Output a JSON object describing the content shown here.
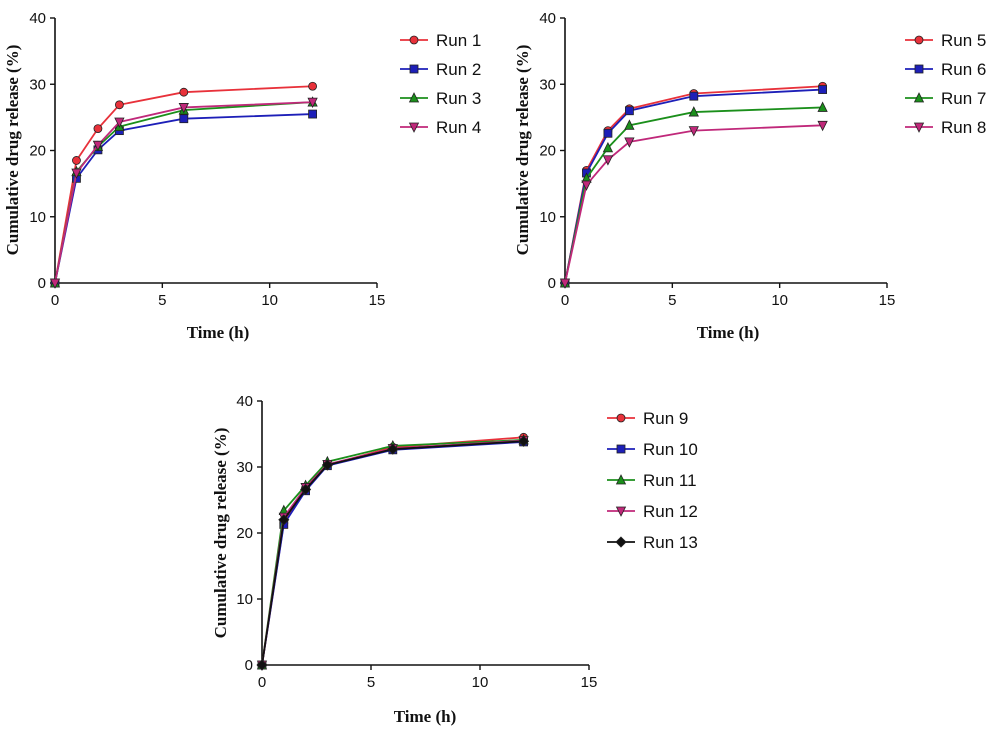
{
  "chart_data": [
    {
      "type": "line",
      "xlabel": "Time (h)",
      "ylabel": "Cumulative drug release (%)",
      "xlim": [
        0,
        15
      ],
      "ylim": [
        0,
        40
      ],
      "xticks": [
        0,
        5,
        10,
        15
      ],
      "yticks": [
        0,
        10,
        20,
        30,
        40
      ],
      "x": [
        0,
        1,
        2,
        3,
        6,
        12
      ],
      "legend_position": "right",
      "series": [
        {
          "name": "Run 1",
          "color": "#e8313a",
          "marker": "circle",
          "values": [
            0,
            18.5,
            23.3,
            26.9,
            28.8,
            29.7
          ]
        },
        {
          "name": "Run 2",
          "color": "#1d1fb8",
          "marker": "square",
          "values": [
            0,
            15.8,
            20.1,
            23.0,
            24.8,
            25.5
          ]
        },
        {
          "name": "Run 3",
          "color": "#1b8f1b",
          "marker": "triangle-up",
          "values": [
            0,
            16.8,
            20.6,
            23.6,
            26.1,
            27.3
          ]
        },
        {
          "name": "Run 4",
          "color": "#c0287a",
          "marker": "triangle-down",
          "values": [
            0,
            16.6,
            20.8,
            24.3,
            26.5,
            27.3
          ]
        }
      ]
    },
    {
      "type": "line",
      "xlabel": "Time (h)",
      "ylabel": "Cumulative drug release (%)",
      "xlim": [
        0,
        15
      ],
      "ylim": [
        0,
        40
      ],
      "xticks": [
        0,
        5,
        10,
        15
      ],
      "yticks": [
        0,
        10,
        20,
        30,
        40
      ],
      "x": [
        0,
        1,
        2,
        3,
        6,
        12
      ],
      "legend_position": "right",
      "series": [
        {
          "name": "Run 5",
          "color": "#e8313a",
          "marker": "circle",
          "values": [
            0,
            17.0,
            23.0,
            26.3,
            28.6,
            29.7
          ]
        },
        {
          "name": "Run 6",
          "color": "#1d1fb8",
          "marker": "square",
          "values": [
            0,
            16.6,
            22.6,
            26.0,
            28.2,
            29.2
          ]
        },
        {
          "name": "Run 7",
          "color": "#1b8f1b",
          "marker": "triangle-up",
          "values": [
            0,
            15.8,
            20.4,
            23.8,
            25.8,
            26.5
          ]
        },
        {
          "name": "Run 8",
          "color": "#c0287a",
          "marker": "triangle-down",
          "values": [
            0,
            14.8,
            18.6,
            21.3,
            23.0,
            23.8
          ]
        }
      ]
    },
    {
      "type": "line",
      "xlabel": "Time (h)",
      "ylabel": "Cumulative drug release (%)",
      "xlim": [
        0,
        15
      ],
      "ylim": [
        0,
        40
      ],
      "xticks": [
        0,
        5,
        10,
        15
      ],
      "yticks": [
        0,
        10,
        20,
        30,
        40
      ],
      "x": [
        0,
        1,
        2,
        3,
        6,
        12
      ],
      "legend_position": "right",
      "series": [
        {
          "name": "Run 9",
          "color": "#e8313a",
          "marker": "circle",
          "values": [
            0,
            21.5,
            26.5,
            30.3,
            33.0,
            34.5
          ]
        },
        {
          "name": "Run 10",
          "color": "#1d1fb8",
          "marker": "square",
          "values": [
            0,
            21.3,
            26.4,
            30.2,
            32.6,
            33.8
          ]
        },
        {
          "name": "Run 11",
          "color": "#1b8f1b",
          "marker": "triangle-up",
          "values": [
            0,
            23.4,
            27.2,
            30.8,
            33.2,
            34.1
          ]
        },
        {
          "name": "Run 12",
          "color": "#c0287a",
          "marker": "triangle-down",
          "values": [
            0,
            22.4,
            26.9,
            30.4,
            32.8,
            34.0
          ]
        },
        {
          "name": "Run 13",
          "color": "#111111",
          "marker": "diamond",
          "values": [
            0,
            22.0,
            26.6,
            30.3,
            32.7,
            33.9
          ]
        }
      ]
    }
  ]
}
